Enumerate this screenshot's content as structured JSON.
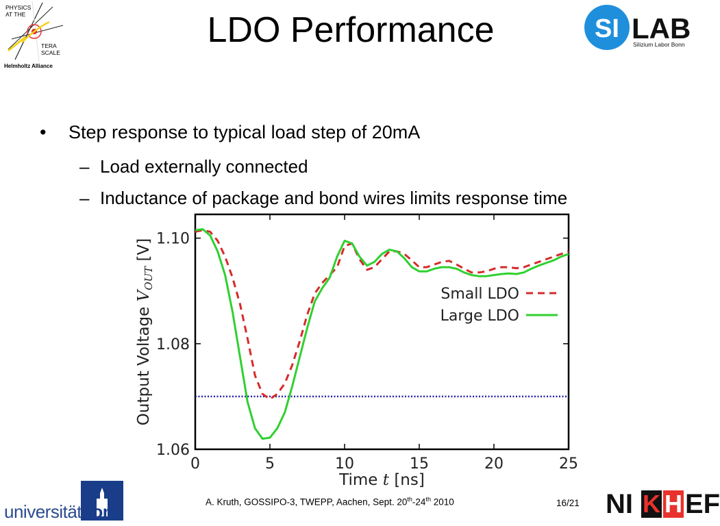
{
  "header": {
    "title": "LDO Performance",
    "left_logo": {
      "line1": "PHYSICS",
      "line2": "AT THE",
      "line3": "TERA",
      "line4": "SCALE",
      "line5": "Helmholtz Alliance"
    },
    "right_logo": {
      "badge": "SI",
      "word": "LAB",
      "sub": "Silizium Labor Bonn",
      "badge_color": "#1f8fdc"
    }
  },
  "bullets": {
    "main": "Step response to typical load step of 20mA",
    "sub1": "Load externally connected",
    "sub2": "Inductance of package and bond wires limits response time",
    "bullet_glyph": "•",
    "dash_glyph": "–"
  },
  "chart_data": {
    "type": "line",
    "xlabel_prefix": "Time ",
    "xlabel_var": "t",
    "xlabel_unit": " [ns]",
    "ylabel_prefix": "Output Voltage ",
    "ylabel_var": "V",
    "ylabel_sub": "OUT",
    "ylabel_unit": " [V]",
    "xlim": [
      0,
      25
    ],
    "ylim": [
      1.06,
      1.1045
    ],
    "x_ticks": [
      0,
      5,
      10,
      15,
      20,
      25
    ],
    "x_tick_labels": [
      "0",
      "5",
      "10",
      "15",
      "20",
      "25"
    ],
    "y_ticks": [
      1.06,
      1.08,
      1.1
    ],
    "y_tick_labels": [
      "1.06",
      "1.08",
      "1.10"
    ],
    "legend_position": "right",
    "reference_line": {
      "y": 1.07,
      "color": "#1f1fa8"
    },
    "series": [
      {
        "name": "Small LDO",
        "color": "#d62a2a",
        "dash": "dashed",
        "points": [
          [
            0,
            1.1012
          ],
          [
            0.5,
            1.1015
          ],
          [
            1,
            1.1012
          ],
          [
            1.5,
            1.0995
          ],
          [
            2,
            1.0965
          ],
          [
            2.5,
            1.0925
          ],
          [
            3,
            1.0875
          ],
          [
            3.5,
            1.081
          ],
          [
            4,
            1.074
          ],
          [
            4.5,
            1.0705
          ],
          [
            5,
            1.0695
          ],
          [
            5.5,
            1.0705
          ],
          [
            6,
            1.0725
          ],
          [
            6.5,
            1.076
          ],
          [
            7,
            1.0805
          ],
          [
            7.5,
            1.0855
          ],
          [
            8,
            1.0895
          ],
          [
            8.5,
            1.0915
          ],
          [
            9,
            1.093
          ],
          [
            9.5,
            1.0945
          ],
          [
            10,
            1.0985
          ],
          [
            10.5,
            1.099
          ],
          [
            11,
            1.096
          ],
          [
            11.5,
            1.094
          ],
          [
            12,
            1.0945
          ],
          [
            12.5,
            1.096
          ],
          [
            13,
            1.0975
          ],
          [
            13.5,
            1.0975
          ],
          [
            14,
            1.097
          ],
          [
            14.5,
            1.0958
          ],
          [
            15,
            1.0945
          ],
          [
            15.5,
            1.0945
          ],
          [
            16,
            1.095
          ],
          [
            16.5,
            1.0955
          ],
          [
            17,
            1.0957
          ],
          [
            17.5,
            1.095
          ],
          [
            18,
            1.0942
          ],
          [
            18.5,
            1.0935
          ],
          [
            19,
            1.0935
          ],
          [
            19.5,
            1.0937
          ],
          [
            20,
            1.0942
          ],
          [
            20.5,
            1.0945
          ],
          [
            21,
            1.0945
          ],
          [
            21.5,
            1.0943
          ],
          [
            22,
            1.0945
          ],
          [
            22.5,
            1.095
          ],
          [
            23,
            1.0955
          ],
          [
            23.5,
            1.096
          ],
          [
            24,
            1.0965
          ],
          [
            24.5,
            1.097
          ],
          [
            25,
            1.0975
          ]
        ]
      },
      {
        "name": "Large LDO",
        "color": "#2fd02f",
        "dash": "solid",
        "points": [
          [
            0,
            1.1015
          ],
          [
            0.5,
            1.1017
          ],
          [
            1,
            1.1005
          ],
          [
            1.5,
            1.0975
          ],
          [
            2,
            1.093
          ],
          [
            2.5,
            1.086
          ],
          [
            3,
            1.0775
          ],
          [
            3.5,
            1.069
          ],
          [
            4,
            1.064
          ],
          [
            4.5,
            1.062
          ],
          [
            5,
            1.0622
          ],
          [
            5.5,
            1.064
          ],
          [
            6,
            1.067
          ],
          [
            6.5,
            1.072
          ],
          [
            7,
            1.0775
          ],
          [
            7.5,
            1.083
          ],
          [
            8,
            1.088
          ],
          [
            8.5,
            1.0905
          ],
          [
            9,
            1.0925
          ],
          [
            9.5,
            1.0965
          ],
          [
            10,
            1.0995
          ],
          [
            10.5,
            1.099
          ],
          [
            11,
            1.0965
          ],
          [
            11.5,
            1.0948
          ],
          [
            12,
            1.0955
          ],
          [
            12.5,
            1.097
          ],
          [
            13,
            1.0978
          ],
          [
            13.5,
            1.0975
          ],
          [
            14,
            1.0962
          ],
          [
            14.5,
            1.0945
          ],
          [
            15,
            1.0937
          ],
          [
            15.5,
            1.0937
          ],
          [
            16,
            1.0942
          ],
          [
            16.5,
            1.0945
          ],
          [
            17,
            1.0945
          ],
          [
            17.5,
            1.0942
          ],
          [
            18,
            1.0935
          ],
          [
            18.5,
            1.093
          ],
          [
            19,
            1.0928
          ],
          [
            19.5,
            1.0928
          ],
          [
            20,
            1.093
          ],
          [
            20.5,
            1.0932
          ],
          [
            21,
            1.0933
          ],
          [
            21.5,
            1.0932
          ],
          [
            22,
            1.0935
          ],
          [
            22.5,
            1.0942
          ],
          [
            23,
            1.0948
          ],
          [
            23.5,
            1.0953
          ],
          [
            24,
            1.0958
          ],
          [
            24.5,
            1.0965
          ],
          [
            25,
            1.097
          ]
        ]
      }
    ]
  },
  "footer": {
    "citation_main": "A. Kruth, GOSSIPO-3, TWEPP, Aachen, Sept. 20",
    "sup1": "th",
    "dash": "-24",
    "sup2": "th",
    "year": " 2010",
    "page": "16/21",
    "bonn_prefix": "universität",
    "bonn_bold": "bonn",
    "bonn_color": "#1a3d8a",
    "nikhef_1": "NI",
    "nikhef_k": "K",
    "nikhef_h": "H",
    "nikhef_ef": "EF",
    "nikhef_red": "#e8322b"
  }
}
